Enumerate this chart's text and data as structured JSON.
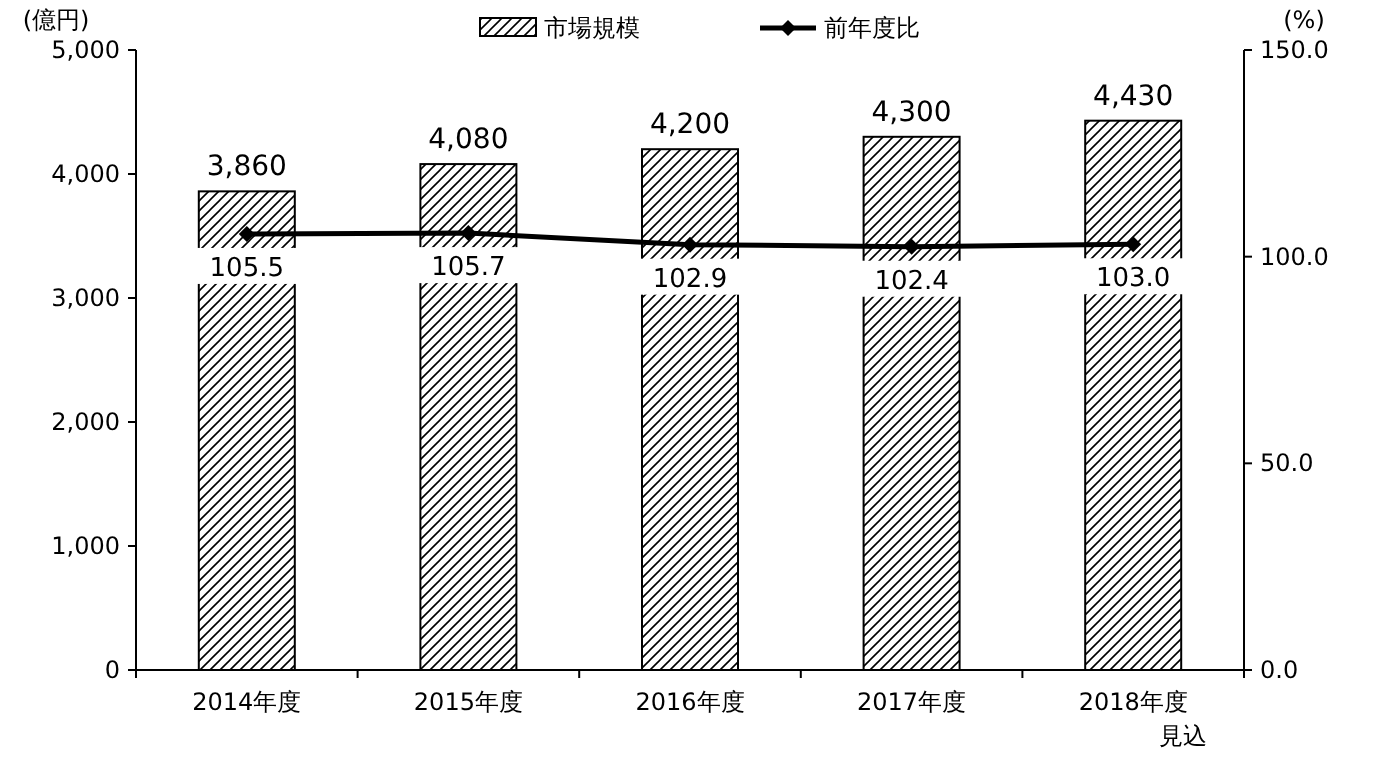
{
  "chart_data": {
    "type": "bar",
    "categories": [
      "2014年度",
      "2015年度",
      "2016年度",
      "2017年度",
      "2018年度見込"
    ],
    "ylabel": "(億円)",
    "y2label": "(%)",
    "ylim": [
      0,
      5000
    ],
    "yticks": [
      {
        "value": 0,
        "label": "0"
      },
      {
        "value": 1000,
        "label": "1,000"
      },
      {
        "value": 2000,
        "label": "2,000"
      },
      {
        "value": 3000,
        "label": "3,000"
      },
      {
        "value": 4000,
        "label": "4,000"
      },
      {
        "value": 5000,
        "label": "5,000"
      }
    ],
    "y2lim": [
      0,
      150
    ],
    "y2ticks": [
      {
        "value": 0,
        "label": "0.0"
      },
      {
        "value": 50,
        "label": "50.0"
      },
      {
        "value": 100,
        "label": "100.0"
      },
      {
        "value": 150,
        "label": "150.0"
      }
    ],
    "legend": "top",
    "grid": false,
    "series": [
      {
        "name": "市場規模",
        "type": "bar",
        "color": "#000000",
        "values": [
          3860,
          4080,
          4200,
          4300,
          4430
        ],
        "value_labels": [
          "3,860",
          "4,080",
          "4,200",
          "4,300",
          "4,430"
        ]
      },
      {
        "name": "前年度比",
        "type": "line",
        "axis": "y2",
        "color": "#000000",
        "marker": "diamond",
        "values": [
          105.5,
          105.7,
          102.9,
          102.4,
          103.0
        ],
        "value_labels": [
          "105.5",
          "105.7",
          "102.9",
          "102.4",
          "103.0"
        ]
      }
    ]
  }
}
